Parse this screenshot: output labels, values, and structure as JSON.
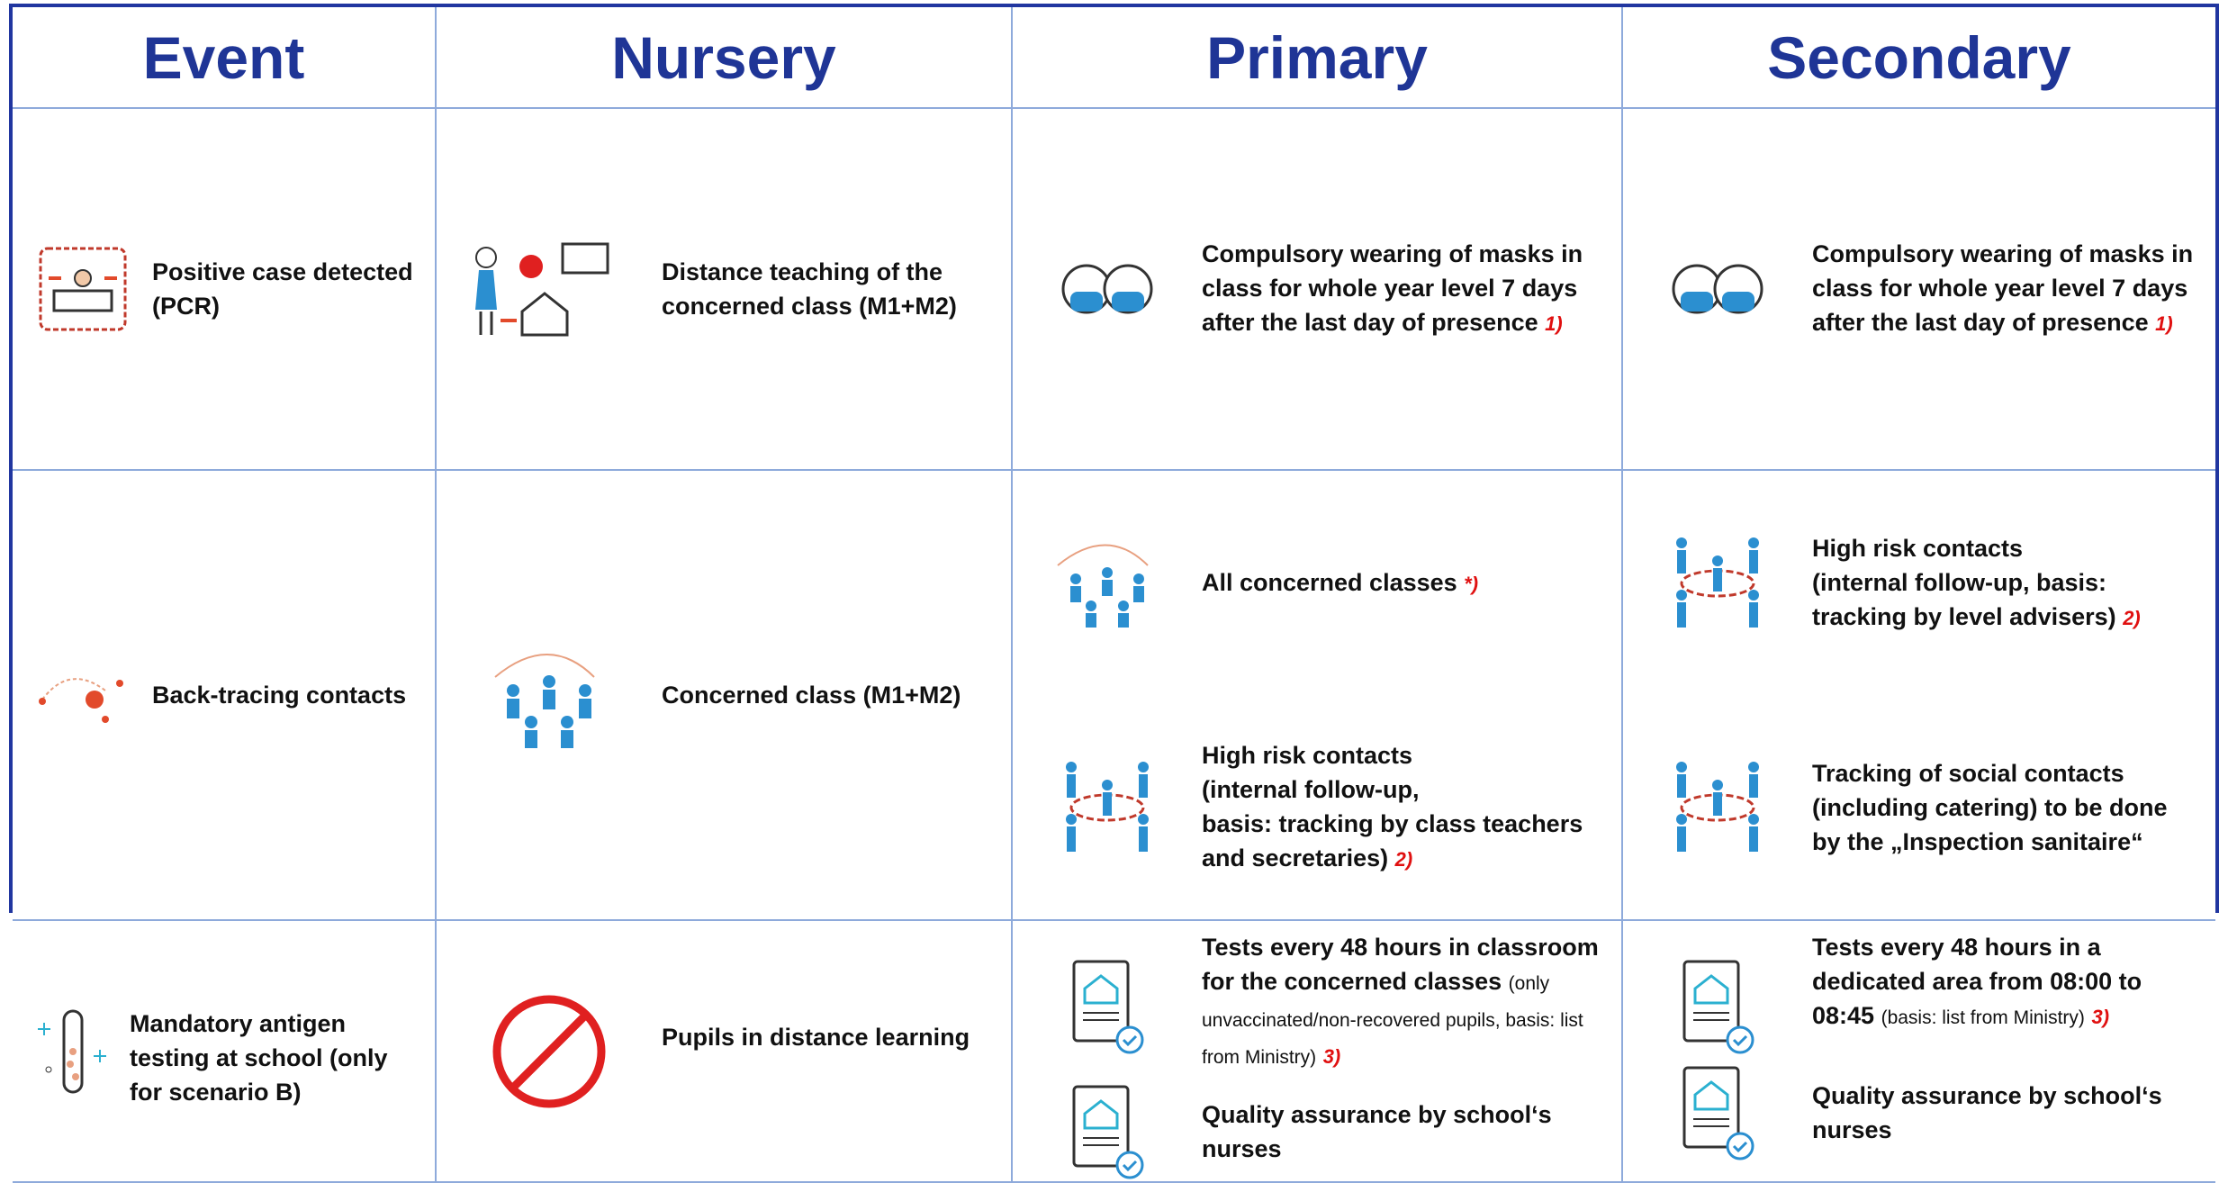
{
  "header": [
    "Event",
    "Nursery",
    "Primary",
    "Secondary"
  ],
  "rows": [
    {
      "event": "Positive case detected (PCR)",
      "nursery": "Distance teaching of the concerned class (M1+M2)",
      "primary": [
        {
          "text": "Compulsory wearing of masks in class for whole year level 7 days after the last day of presence",
          "note": "1)"
        }
      ],
      "secondary": [
        {
          "text": "Compulsory wearing of masks in class for whole year level 7 days after the last day of presence",
          "note": "1)"
        }
      ]
    },
    {
      "event": "Back-tracing contacts",
      "nursery": "Concerned class (M1+M2)",
      "primary": [
        {
          "text": "All concerned classes",
          "note": "*)"
        },
        {
          "text": "High risk contacts\n(internal follow-up,\nbasis: tracking by class teachers and secretaries)",
          "note": "2)"
        }
      ],
      "secondary": [
        {
          "text": "High risk contacts\n(internal follow-up, basis: tracking by level advisers)",
          "note": "2)"
        },
        {
          "text": "Tracking of social contacts (including catering) to be done by the „Inspection sanitaire“"
        }
      ]
    },
    {
      "event": "Mandatory antigen testing at school (only for scenario B)",
      "nursery": "Pupils in distance learning",
      "primary": [
        {
          "text": "Tests every 48 hours in classroom for the concerned classes",
          "small": "(only unvaccinated/non-recovered pupils, basis: list from Ministry)",
          "note": "3)"
        },
        {
          "text": "Quality assurance by school‘s nurses"
        }
      ],
      "secondary": [
        {
          "text": "Tests every 48 hours in a dedicated area from 08:00 to 08:45",
          "small": "(basis: list from Ministry)",
          "note": "3)"
        },
        {
          "text": "Quality assurance by school‘s nurses"
        }
      ]
    }
  ]
}
